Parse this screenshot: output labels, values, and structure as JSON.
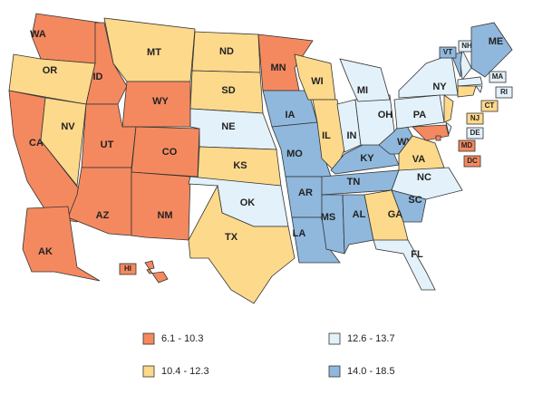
{
  "states": [
    {
      "label": "WA",
      "color": "#f4895f"
    },
    {
      "label": "OR",
      "color": "#fdd98b"
    },
    {
      "label": "CA",
      "color": "#f4895f"
    },
    {
      "label": "NV",
      "color": "#fdd98b"
    },
    {
      "label": "ID",
      "color": "#f4895f"
    },
    {
      "label": "MT",
      "color": "#fdd98b"
    },
    {
      "label": "WY",
      "color": "#f4895f"
    },
    {
      "label": "UT",
      "color": "#f4895f"
    },
    {
      "label": "CO",
      "color": "#f4895f"
    },
    {
      "label": "AZ",
      "color": "#f4895f"
    },
    {
      "label": "NM",
      "color": "#f4895f"
    },
    {
      "label": "ND",
      "color": "#fdd98b"
    },
    {
      "label": "SD",
      "color": "#fdd98b"
    },
    {
      "label": "NE",
      "color": "#e3f1fa"
    },
    {
      "label": "KS",
      "color": "#fdd98b"
    },
    {
      "label": "OK",
      "color": "#e3f1fa"
    },
    {
      "label": "TX",
      "color": "#fdd98b"
    },
    {
      "label": "MN",
      "color": "#f4895f"
    },
    {
      "label": "IA",
      "color": "#8fb8dc"
    },
    {
      "label": "MO",
      "color": "#8fb8dc"
    },
    {
      "label": "AR",
      "color": "#8fb8dc"
    },
    {
      "label": "LA",
      "color": "#8fb8dc"
    },
    {
      "label": "WI",
      "color": "#fdd98b"
    },
    {
      "label": "IL",
      "color": "#fdd98b"
    },
    {
      "label": "MS",
      "color": "#8fb8dc"
    },
    {
      "label": "AL",
      "color": "#8fb8dc"
    },
    {
      "label": "TN",
      "color": "#8fb8dc"
    },
    {
      "label": "KY",
      "color": "#8fb8dc"
    },
    {
      "label": "IN",
      "color": "#e3f1fa"
    },
    {
      "label": "OH",
      "color": "#e3f1fa"
    },
    {
      "label": "MI",
      "color": "#e3f1fa"
    },
    {
      "label": "WV",
      "color": "#8fb8dc"
    },
    {
      "label": "VA",
      "color": "#fdd98b"
    },
    {
      "label": "NC",
      "color": "#e3f1fa"
    },
    {
      "label": "SC",
      "color": "#8fb8dc"
    },
    {
      "label": "GA",
      "color": "#fdd98b"
    },
    {
      "label": "FL",
      "color": "#e3f1fa"
    },
    {
      "label": "PA",
      "color": "#e3f1fa"
    },
    {
      "label": "NY",
      "color": "#e3f1fa"
    },
    {
      "label": "NJ",
      "color": "#fdd98b"
    },
    {
      "label": "DE",
      "color": "#e3f1fa"
    },
    {
      "label": "MD",
      "color": "#f4895f"
    },
    {
      "label": "DC",
      "color": "#f4895f"
    },
    {
      "label": "VT",
      "color": "#8fb8dc"
    },
    {
      "label": "NH",
      "color": "#e3f1fa"
    },
    {
      "label": "ME",
      "color": "#8fb8dc"
    },
    {
      "label": "MA",
      "color": "#e3f1fa"
    },
    {
      "label": "RI",
      "color": "#e3f1fa"
    },
    {
      "label": "CT",
      "color": "#fdd98b"
    },
    {
      "label": "AK",
      "color": "#f4895f"
    },
    {
      "label": "HI",
      "color": "#f4895f"
    }
  ],
  "legend": [
    {
      "label": "6.1 - 10.3",
      "color": "#f4895f"
    },
    {
      "label": "10.4 - 12.3",
      "color": "#fdd98b"
    },
    {
      "label": "12.6 - 13.7",
      "color": "#e3f1fa"
    },
    {
      "label": "14.0 - 18.5",
      "color": "#8fb8dc"
    }
  ]
}
